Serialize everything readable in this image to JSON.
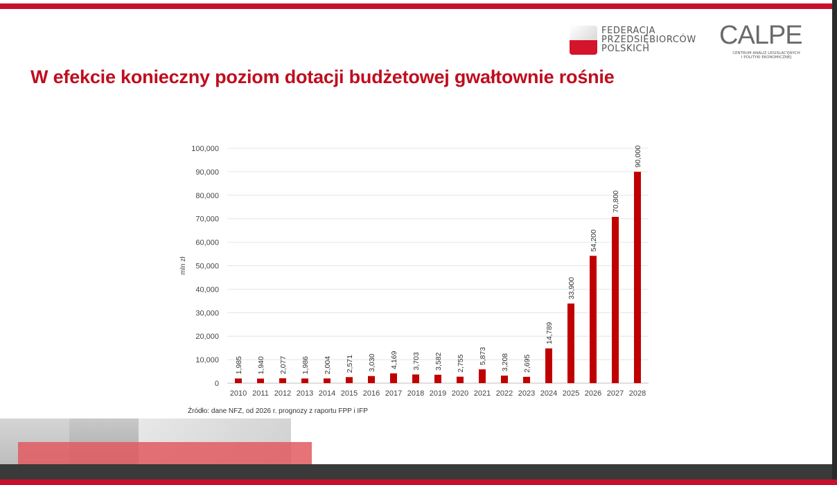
{
  "slide": {
    "title": "W efekcie konieczny poziom dotacji budżetowej gwałtownie rośnie",
    "source": "Źródło: dane NFZ, od 2026 r. prognozy z raportu FPP i IFP"
  },
  "logos": {
    "fpp": {
      "line1": "FEDERACJA",
      "line2": "PRZEDSIĘBIORCÓW",
      "line3": "POLSKICH"
    },
    "calpe": {
      "word": "CALPE",
      "sub1": "CENTRUM ANALIZ LEGISLACYJNYCH",
      "sub2": "I POLITYKI EKONOMICZNEJ"
    }
  },
  "colors": {
    "accent": "#c8102e",
    "bar": "#c00000",
    "title": "#c00d1e"
  },
  "chart_data": {
    "type": "bar",
    "categories": [
      "2010",
      "2011",
      "2012",
      "2013",
      "2014",
      "2015",
      "2016",
      "2017",
      "2018",
      "2019",
      "2020",
      "2021",
      "2022",
      "2023",
      "2024",
      "2025",
      "2026",
      "2027",
      "2028"
    ],
    "values": [
      1985,
      1940,
      2077,
      1986,
      2004,
      2571,
      3030,
      4169,
      3703,
      3582,
      2755,
      5873,
      3208,
      2695,
      14789,
      33900,
      54200,
      70800,
      90000
    ],
    "value_labels": [
      "1,985",
      "1,940",
      "2,077",
      "1,986",
      "2,004",
      "2,571",
      "3,030",
      "4,169",
      "3,703",
      "3,582",
      "2,755",
      "5,873",
      "3,208",
      "2,695",
      "14,789",
      "33,900",
      "54,200",
      "70,800",
      "90,000"
    ],
    "ylabel": "mln zł",
    "xlabel": "",
    "ylim": [
      0,
      100000
    ],
    "yticks": [
      0,
      10000,
      20000,
      30000,
      40000,
      50000,
      60000,
      70000,
      80000,
      90000,
      100000
    ],
    "ytick_labels": [
      "0",
      "10,000",
      "20,000",
      "30,000",
      "40,000",
      "50,000",
      "60,000",
      "70,000",
      "80,000",
      "90,000",
      "100,000"
    ],
    "grid": true,
    "legend": "none"
  }
}
